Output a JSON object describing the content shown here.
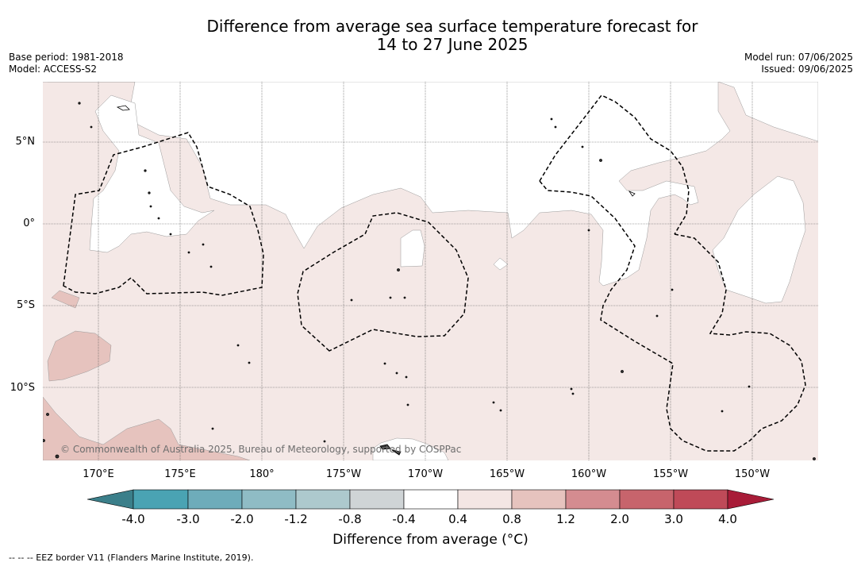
{
  "title": {
    "line1": "Difference from average sea surface temperature forecast for",
    "line2": "14 to 27 June 2025"
  },
  "meta": {
    "base_period": "Base period: 1981-2018",
    "model": "Model: ACCESS-S2",
    "model_run": "Model run: 07/06/2025",
    "issued": "Issued: 09/06/2025"
  },
  "map": {
    "lat_labels": [
      "5°N",
      "0°",
      "5°S",
      "10°S"
    ],
    "lon_labels": [
      "170°E",
      "175°E",
      "180°",
      "175°W",
      "170°W",
      "165°W",
      "160°W",
      "155°W",
      "150°W"
    ],
    "copyright": "© Commonwealth of Australia 2025, Bureau of Meteorology, supported by COSPPac",
    "colors": {
      "land_outline": "#000000",
      "anomaly_0_4_to_0_8": "#f4e8e6",
      "anomaly_0_8_to_1_2": "#e6c3be",
      "neutral": "#ffffff"
    }
  },
  "colorbar": {
    "ticks": [
      "-4.0",
      "-3.0",
      "-2.0",
      "-1.2",
      "-0.8",
      "-0.4",
      "0.4",
      "0.8",
      "1.2",
      "2.0",
      "3.0",
      "4.0"
    ],
    "colors": [
      "#3b7f8a",
      "#4aa3b3",
      "#6eacba",
      "#8fbcc5",
      "#adc9cd",
      "#cfd4d6",
      "#ffffff",
      "#f4e6e4",
      "#e6c3be",
      "#d48c90",
      "#c7646c",
      "#bf4a58",
      "#a81c38"
    ],
    "label": "Difference from average (°C)"
  },
  "legend_note": "--  --  -- EEZ border V11 (Flanders Marine Institute, 2019)."
}
